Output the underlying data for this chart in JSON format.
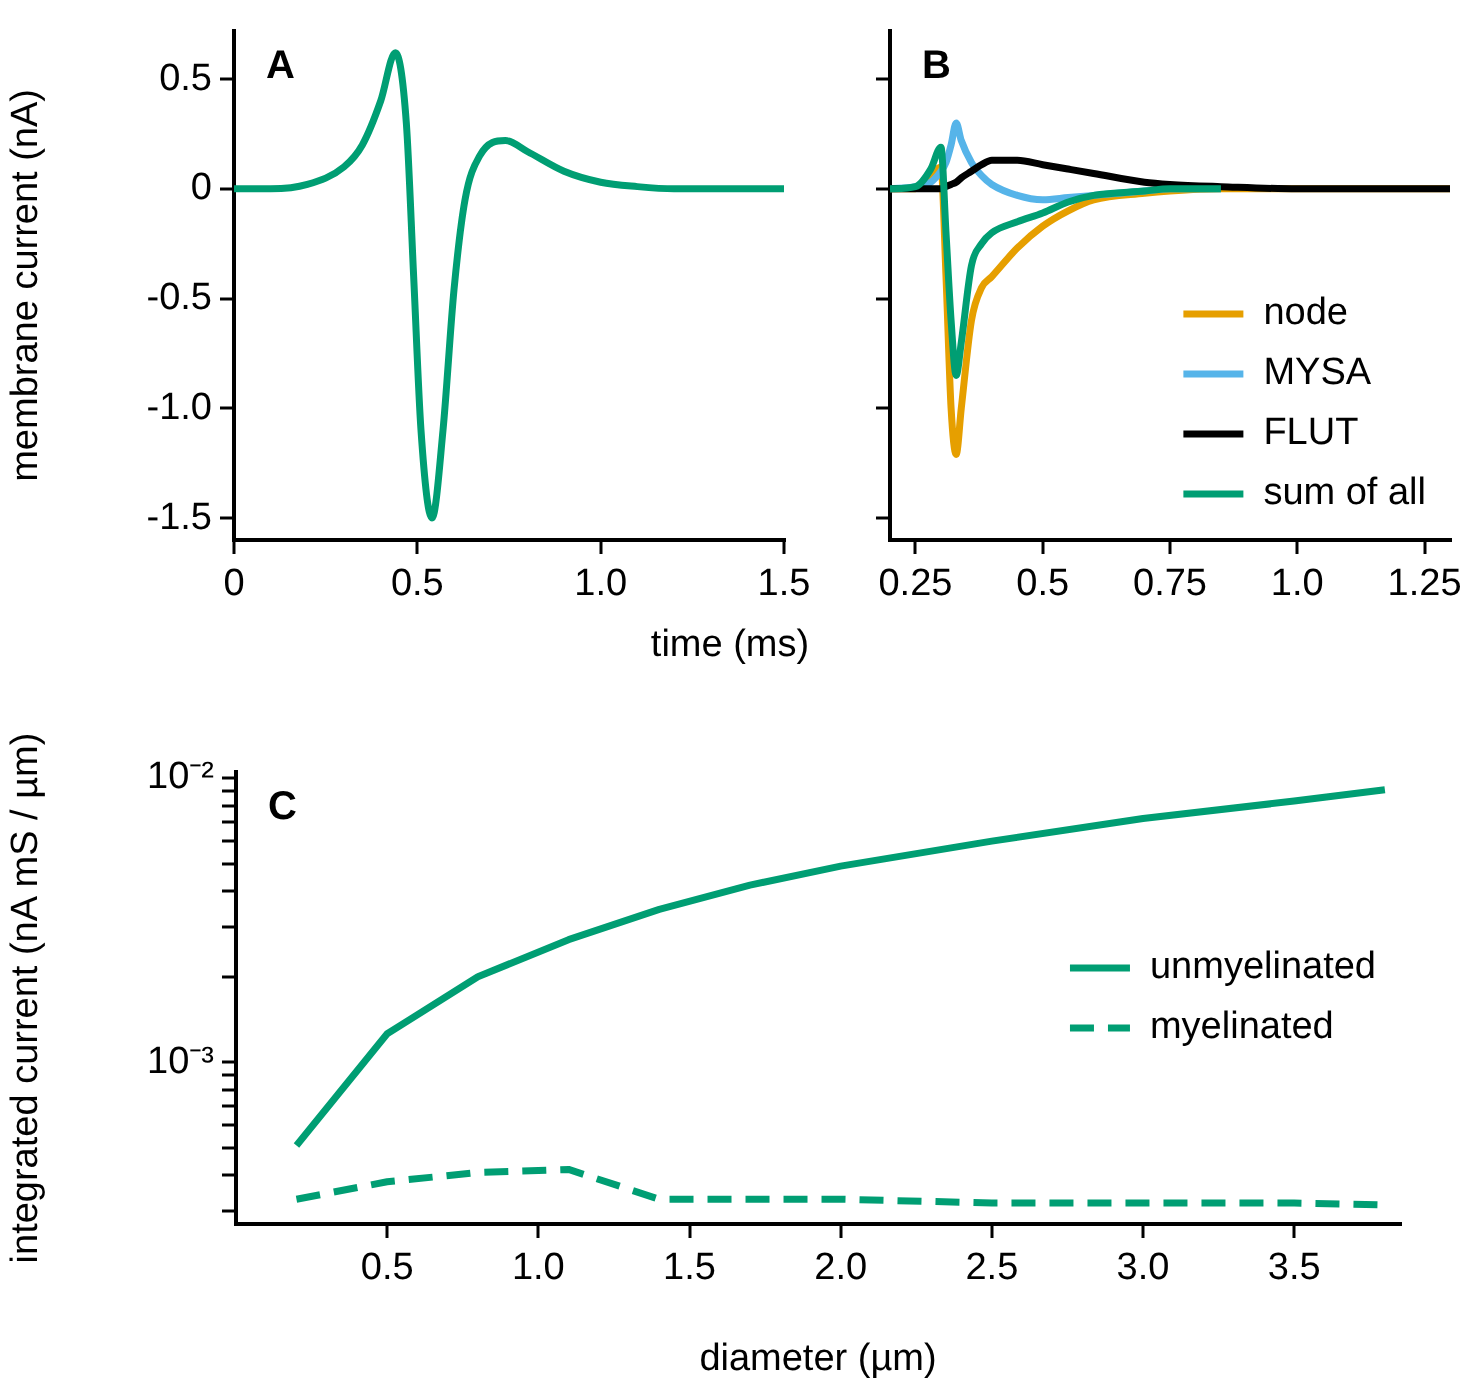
{
  "chart_data": [
    {
      "type": "line",
      "title": "A",
      "xlabel": "time (ms)",
      "ylabel": "membrane current (nA)",
      "marker": "none",
      "grid": false,
      "x": [
        0,
        0.1,
        0.2,
        0.3,
        0.35,
        0.4,
        0.44,
        0.47,
        0.49,
        0.51,
        0.54,
        0.57,
        0.6,
        0.63,
        0.67,
        0.74,
        0.8,
        0.9,
        1.0,
        1.1,
        1.2,
        1.5
      ],
      "series": [
        {
          "color": "#009e73",
          "values": [
            0,
            0,
            0.02,
            0.1,
            0.2,
            0.4,
            0.62,
            0.3,
            -0.4,
            -1.1,
            -1.5,
            -1.1,
            -0.46,
            -0.05,
            0.15,
            0.22,
            0.17,
            0.08,
            0.03,
            0.01,
            0,
            0
          ]
        }
      ],
      "xlim": [
        0,
        1.5
      ],
      "xticks": [
        0,
        0.5,
        {
          "value": 1,
          "label": "1.0"
        },
        1.5
      ],
      "ylim": [
        -1.6,
        0.72
      ],
      "yticks": [
        0.5,
        0,
        -0.5,
        {
          "value": -1,
          "label": "-1.0"
        },
        -1.5
      ]
    },
    {
      "type": "line",
      "title": "B",
      "marker": "none",
      "grid": false,
      "legend": "bottom right",
      "tick_labels": "x",
      "x": [
        0.2,
        0.25,
        0.28,
        0.3,
        0.31,
        0.32,
        0.33,
        0.34,
        0.36,
        0.38,
        0.4,
        0.45,
        0.5,
        0.55,
        0.6,
        0.7,
        0.75,
        0.85,
        1.0,
        1.3
      ],
      "series": [
        {
          "name": "node",
          "color": "#e69f00",
          "values": [
            0,
            0,
            0.06,
            0.1,
            -0.4,
            -1.0,
            -1.21,
            -1.0,
            -0.6,
            -0.45,
            -0.4,
            -0.27,
            -0.17,
            -0.1,
            -0.05,
            -0.02,
            -0.01,
            0,
            0,
            0
          ]
        },
        {
          "name": "MYSA",
          "color": "#56b4e9",
          "values": [
            0,
            0.01,
            0.03,
            0.08,
            0.12,
            0.2,
            0.3,
            0.22,
            0.12,
            0.06,
            0.02,
            -0.03,
            -0.05,
            -0.04,
            -0.03,
            -0.01,
            0,
            0,
            null,
            null
          ]
        },
        {
          "name": "FLUT",
          "color": "#000000",
          "values": [
            0,
            0,
            0,
            0,
            0.01,
            0.02,
            0.03,
            0.05,
            0.08,
            0.11,
            0.13,
            0.13,
            0.11,
            0.09,
            0.07,
            0.03,
            0.02,
            0.01,
            0,
            0
          ]
        },
        {
          "name": "sum of all",
          "color": "#009e73",
          "values": [
            0,
            0.01,
            0.09,
            0.19,
            -0.2,
            -0.6,
            -0.85,
            -0.7,
            -0.35,
            -0.25,
            -0.2,
            -0.15,
            -0.11,
            -0.06,
            -0.03,
            -0.01,
            0,
            0,
            null,
            null
          ]
        }
      ],
      "xlim": [
        0.2,
        1.3
      ],
      "xticks": [
        0.25,
        0.5,
        0.75,
        {
          "value": 1,
          "label": "1.0"
        },
        1.25
      ],
      "ylim": [
        -1.6,
        0.72
      ],
      "yticks": [
        0.5,
        0,
        -0.5,
        -1,
        -1.5
      ]
    },
    {
      "type": "line",
      "title": "C",
      "xlabel": "diameter (µm)",
      "ylabel": "integrated current (nA mS / µm)",
      "marker": "none",
      "grid": false,
      "legend": "right",
      "log": "y",
      "x": [
        0.2,
        0.5,
        0.8,
        1.1,
        1.4,
        1.7,
        2.0,
        2.5,
        3.0,
        3.5,
        3.8
      ],
      "series": [
        {
          "name": "unmyelinated",
          "color": "#009e73",
          "line_style": "solid",
          "values": [
            0.00051,
            0.00126,
            0.002,
            0.0027,
            0.00345,
            0.0042,
            0.0049,
            0.006,
            0.0072,
            0.0083,
            0.0091
          ]
        },
        {
          "name": "myelinated",
          "color": "#009e73",
          "line_style": "dashed",
          "values": [
            0.00033,
            0.00038,
            0.00041,
            0.00042,
            0.00033,
            0.00033,
            0.00033,
            0.00032,
            0.00032,
            0.00032,
            0.000315
          ]
        }
      ],
      "xlim": [
        0,
        3.85
      ],
      "xticks": [
        0.5,
        {
          "value": 1,
          "label": "1.0"
        },
        1.5,
        {
          "value": 2,
          "label": "2.0"
        },
        2.5,
        {
          "value": 3,
          "label": "3.0"
        },
        3.5
      ],
      "ylim": [
        0.00027,
        0.0105
      ],
      "yticks": [
        {
          "value": 0.0003,
          "label": null
        },
        {
          "value": 0.0004,
          "label": null
        },
        {
          "value": 0.0005,
          "label": null
        },
        {
          "value": 0.0006,
          "label": null
        },
        {
          "value": 0.0007,
          "label": null
        },
        {
          "value": 0.0008,
          "label": null
        },
        {
          "value": 0.0009,
          "label": null
        },
        {
          "value": 0.001,
          "label": "10⁻³"
        },
        {
          "value": 0.002,
          "label": null
        },
        {
          "value": 0.003,
          "label": null
        },
        {
          "value": 0.004,
          "label": null
        },
        {
          "value": 0.005,
          "label": null
        },
        {
          "value": 0.006,
          "label": null
        },
        {
          "value": 0.007,
          "label": null
        },
        {
          "value": 0.008,
          "label": null
        },
        {
          "value": 0.009,
          "label": null
        },
        {
          "value": 0.01,
          "label": "10⁻²"
        }
      ]
    }
  ]
}
